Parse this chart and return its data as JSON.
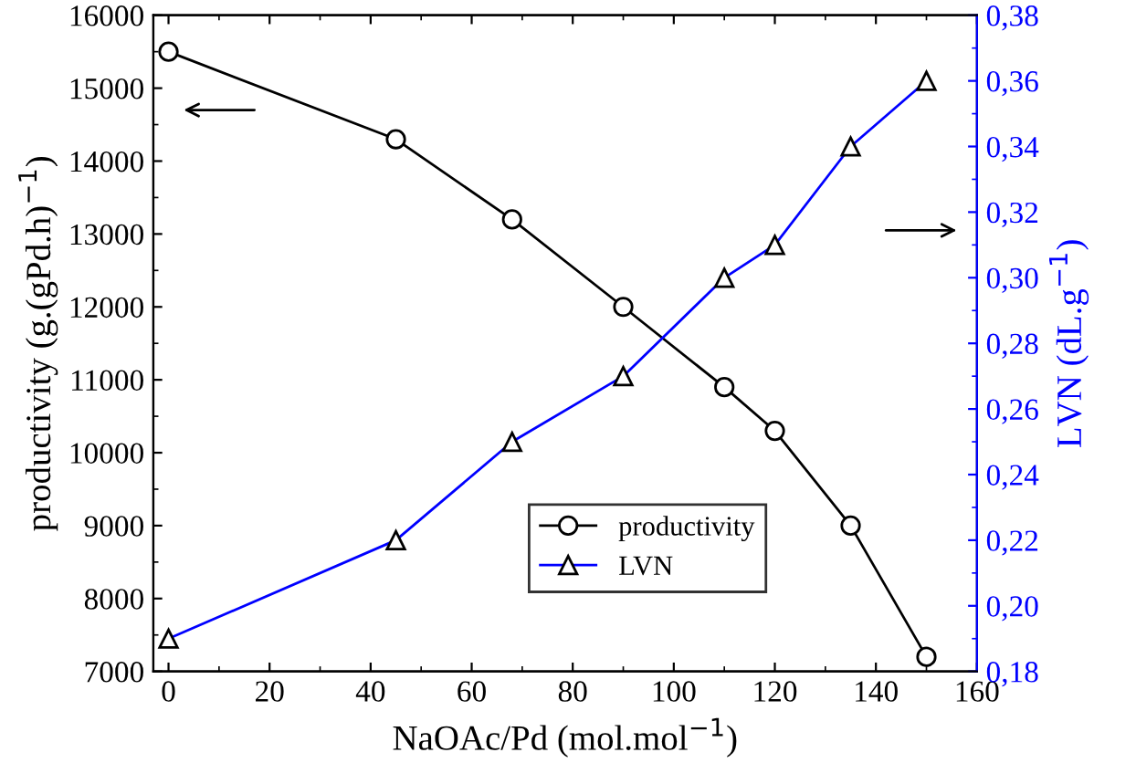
{
  "chart_data": {
    "type": "line",
    "x": [
      0,
      45,
      68,
      90,
      110,
      120,
      135,
      150
    ],
    "series": [
      {
        "name": "productivity",
        "color": "#000000",
        "marker": "circle",
        "values": [
          15500,
          14300,
          13200,
          12000,
          10900,
          10300,
          9000,
          7200
        ]
      },
      {
        "name": "LVN",
        "color": "#0000ff",
        "marker": "triangle",
        "axis": "y2",
        "values": [
          0.19,
          0.22,
          0.25,
          0.27,
          0.3,
          0.31,
          0.34,
          0.36
        ]
      }
    ],
    "xlabel": "NaOAc/Pd (mol.mol$^{−1}$)",
    "ylabel": "productivity (g.(gPd.h)$^{−1}$)",
    "y2label": "LVN (dL.g$^{−1}$)",
    "xlim": [
      -3,
      160
    ],
    "xticks": [
      0,
      20,
      40,
      60,
      80,
      100,
      120,
      140,
      160
    ],
    "ylim": [
      7000,
      16000
    ],
    "yticks": [
      7000,
      8000,
      9000,
      10000,
      11000,
      12000,
      13000,
      14000,
      15000,
      16000
    ],
    "y2lim": [
      0.18,
      0.38
    ],
    "y2ticks": [
      {
        "value": 0.18,
        "label": "0,18"
      },
      {
        "value": 0.2,
        "label": "0,20"
      },
      {
        "value": 0.22,
        "label": "0,22"
      },
      {
        "value": 0.24,
        "label": "0,24"
      },
      {
        "value": 0.26,
        "label": "0,26"
      },
      {
        "value": 0.28,
        "label": "0,28"
      },
      {
        "value": 0.3,
        "label": "0,30"
      },
      {
        "value": 0.32,
        "label": "0,32"
      },
      {
        "value": 0.34,
        "label": "0,34"
      },
      {
        "value": 0.36,
        "label": "0,36"
      },
      {
        "value": 0.38,
        "label": "0,38"
      }
    ],
    "legend": "bottom",
    "grid": false,
    "line_style": "solid"
  }
}
